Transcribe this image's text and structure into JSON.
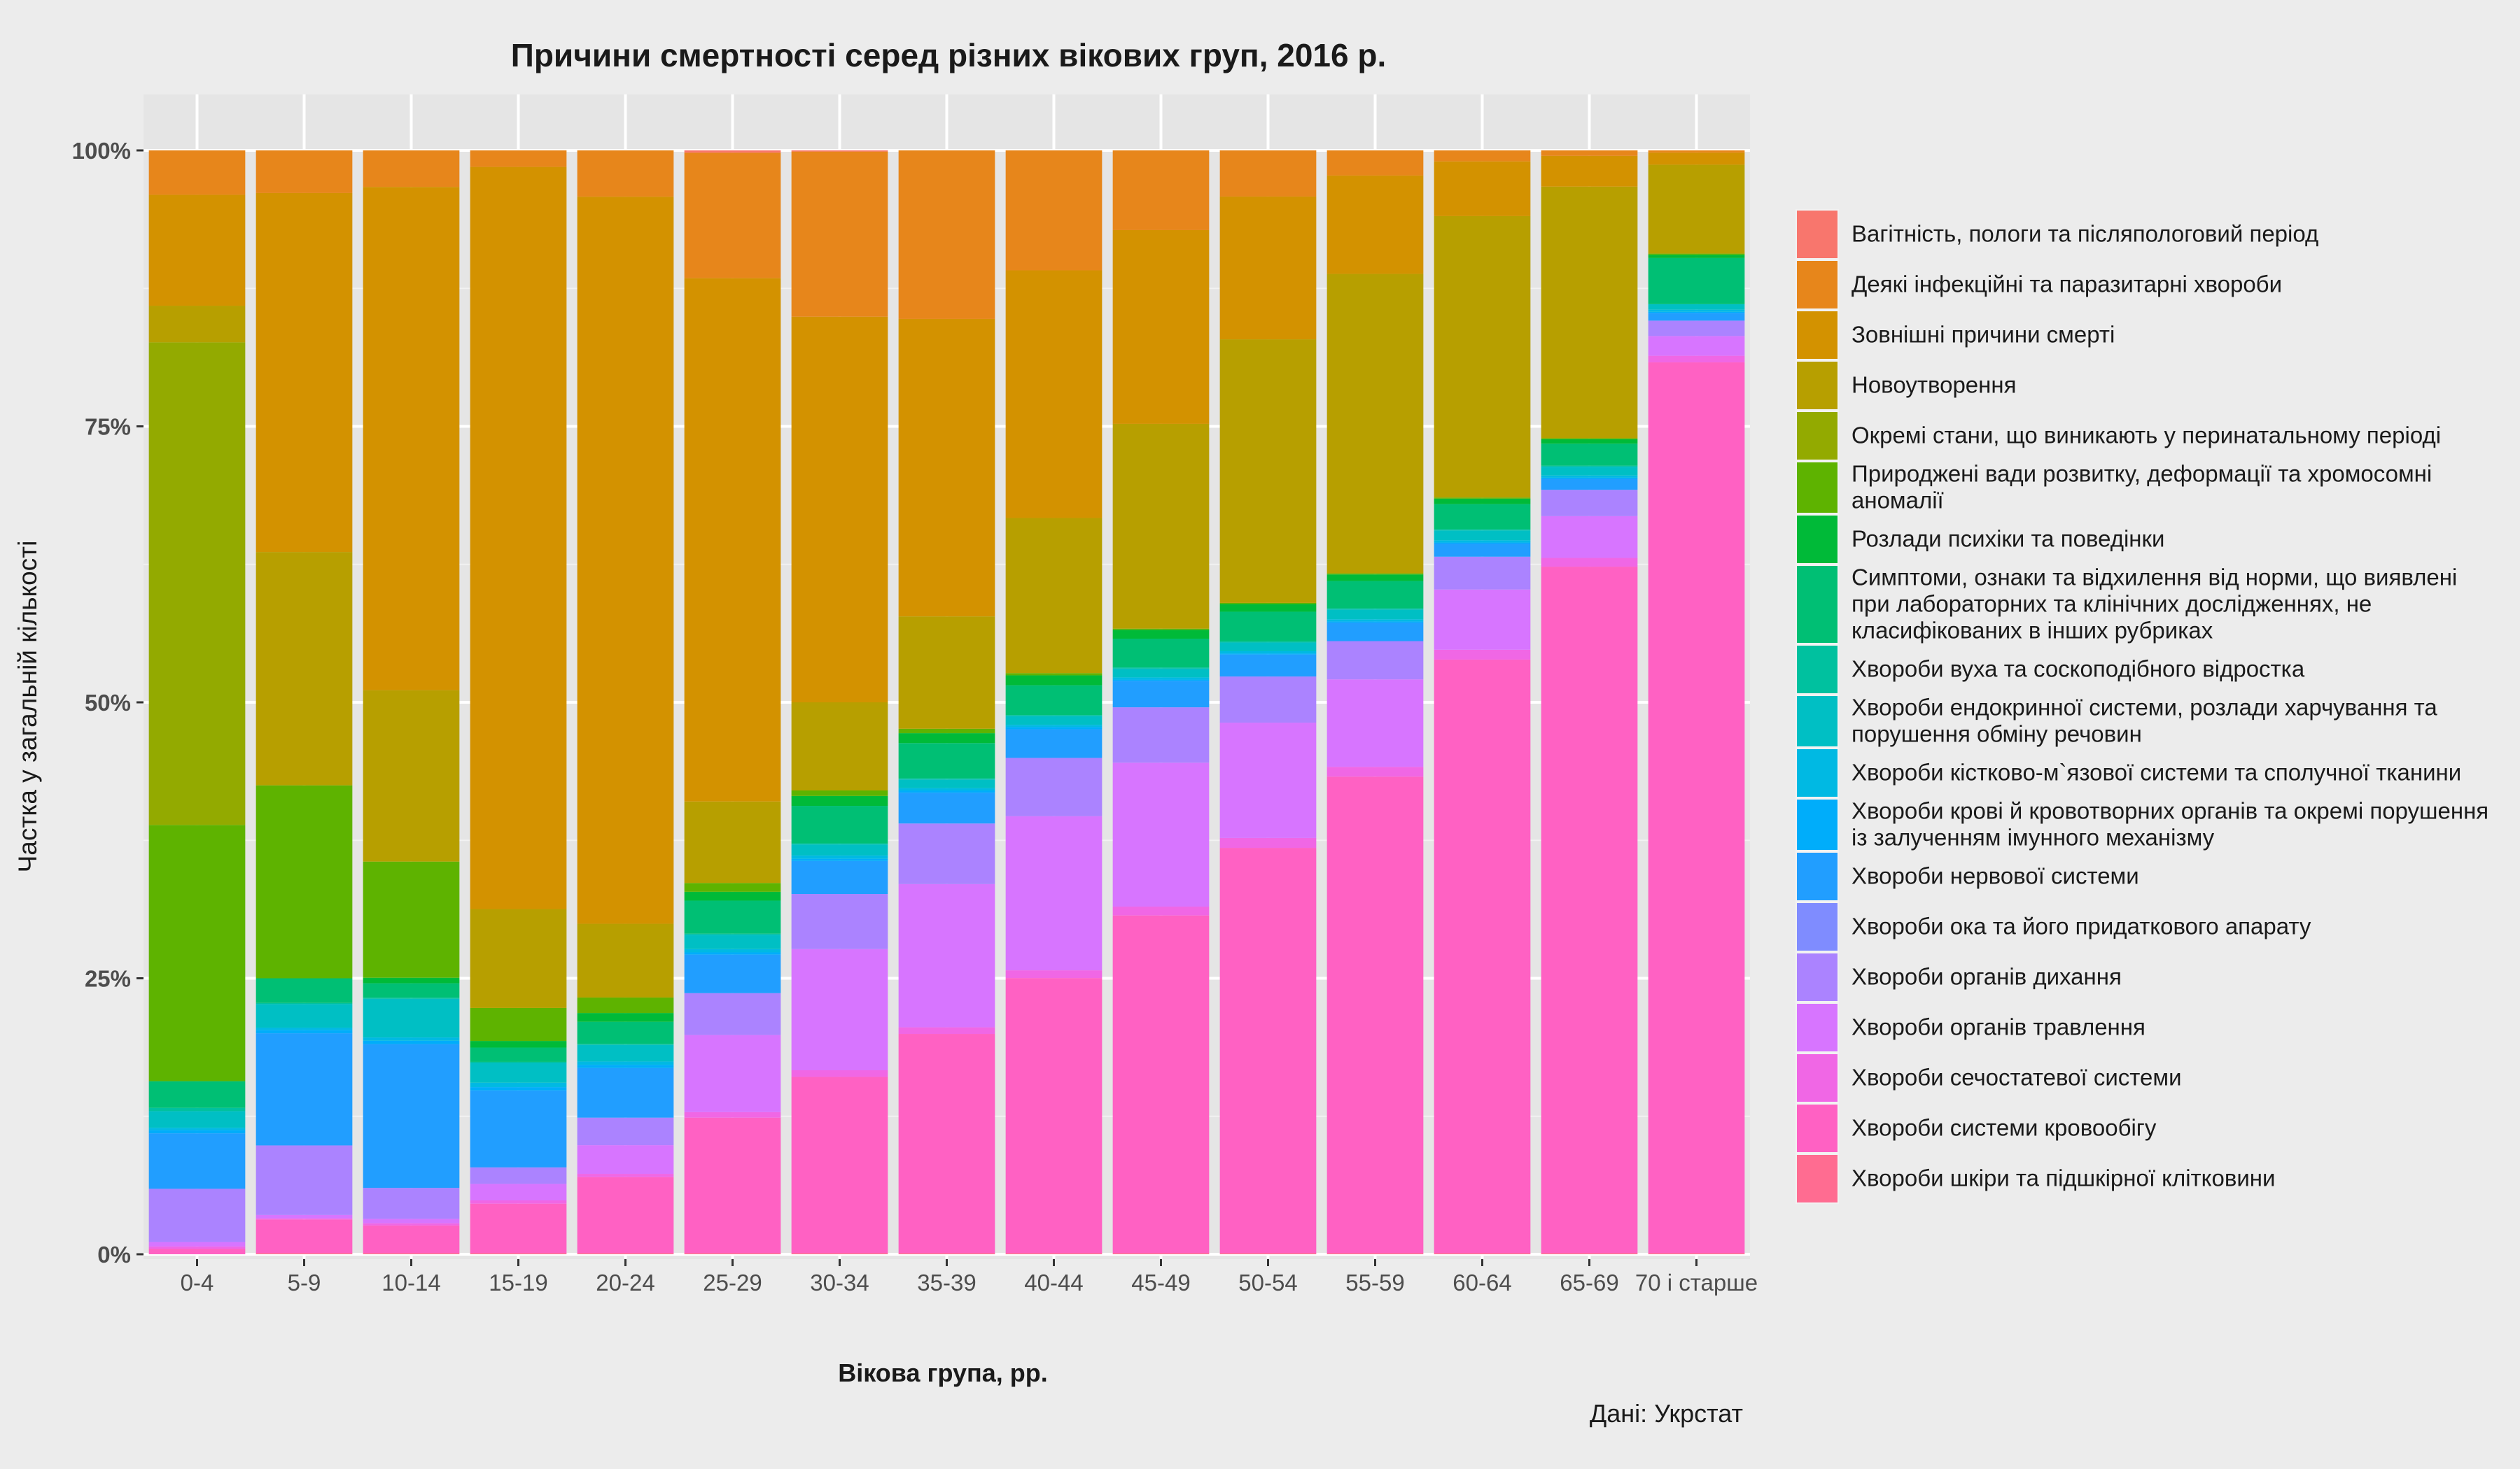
{
  "chart_data": {
    "type": "bar",
    "stacked": true,
    "normalized": true,
    "title": "Причини смертності серед різних вікових груп, 2016 р.",
    "xlabel": "Вікова група, рр.",
    "ylabel": "Частка у загальній кількості",
    "caption": "Дані: Укрстат",
    "ylim": [
      0,
      100
    ],
    "y_ticks": [
      "0%",
      "25%",
      "50%",
      "75%",
      "100%"
    ],
    "y_tick_values": [
      0,
      25,
      50,
      75,
      100
    ],
    "grid": true,
    "legend_position": "right",
    "categories": [
      "0-4",
      "5-9",
      "10-14",
      "15-19",
      "20-24",
      "25-29",
      "30-34",
      "35-39",
      "40-44",
      "45-49",
      "50-54",
      "55-59",
      "60-64",
      "65-69",
      "70 і старше"
    ],
    "series": [
      {
        "name": "Вагітність, пологи та післяпологовий період",
        "color": "#F8766D",
        "values": [
          0,
          0,
          0,
          0,
          0,
          0.2,
          0.1,
          0,
          0,
          0,
          0,
          0,
          0,
          0,
          0
        ]
      },
      {
        "name": "Деякі інфекційні та паразитарні хвороби",
        "color": "#E7861B",
        "values": [
          4.0,
          3.8,
          3.3,
          1.5,
          4.2,
          11.4,
          15.0,
          15.3,
          10.9,
          7.2,
          4.2,
          2.3,
          1.0,
          0.5,
          0.2
        ]
      },
      {
        "name": "Зовнішні причини смерті",
        "color": "#D39200",
        "values": [
          10.0,
          32.0,
          45.5,
          67.5,
          66.0,
          47.5,
          35.0,
          27.0,
          22.5,
          17.5,
          13.0,
          9.0,
          5.0,
          2.8,
          1.1
        ]
      },
      {
        "name": "Новоутворення",
        "color": "#B79F00",
        "values": [
          3.3,
          20.8,
          15.5,
          9.0,
          6.7,
          7.4,
          8.0,
          10.2,
          14.1,
          18.5,
          24.0,
          27.4,
          25.7,
          22.9,
          8.1
        ]
      },
      {
        "name": "Окремі стани, що виникають у перинатальному періоді",
        "color": "#93AA00",
        "values": [
          43.5,
          0,
          0,
          0,
          0,
          0,
          0,
          0,
          0,
          0,
          0,
          0,
          0,
          0,
          0
        ]
      },
      {
        "name": "Природжені вади розвитку, деформації та хромосомні аномалії",
        "color": "#5EB300",
        "values": [
          23.1,
          17.2,
          10.5,
          3.0,
          1.4,
          0.8,
          0.5,
          0.4,
          0.2,
          0.1,
          0.1,
          0.1,
          0.1,
          0.1,
          0.1
        ]
      },
      {
        "name": "Розлади психіки та поведінки",
        "color": "#00BA38",
        "values": [
          0,
          0,
          0.5,
          0.6,
          0.8,
          0.8,
          0.9,
          0.9,
          0.9,
          0.8,
          0.7,
          0.6,
          0.5,
          0.4,
          0.3
        ]
      },
      {
        "name": "Симптоми, ознаки та відхилення від норми, що виявлені при лабораторних та клінічних дослідженнях, не класифікованих в інших рубриках",
        "color": "#00BF74",
        "values": [
          2.4,
          2.2,
          1.3,
          1.3,
          2.0,
          3.0,
          3.4,
          3.2,
          2.7,
          2.6,
          2.7,
          2.5,
          2.3,
          2.0,
          4.2
        ]
      },
      {
        "name": "Хвороби вуха та соскоподібного відростка",
        "color": "#00C19F",
        "values": [
          0.3,
          0.1,
          0.1,
          0.1,
          0.1,
          0.1,
          0.1,
          0.1,
          0.1,
          0.1,
          0.1,
          0.1,
          0.1,
          0.1,
          0
        ]
      },
      {
        "name": "Хвороби ендокринної системи, розлади харчування та порушення обміну речовин",
        "color": "#00BFC4",
        "values": [
          1.5,
          2.1,
          3.5,
          1.8,
          1.5,
          1.3,
          1.0,
          0.8,
          0.8,
          0.8,
          0.8,
          0.9,
          0.9,
          0.8,
          0.5
        ]
      },
      {
        "name": "Хвороби кістково-м`язової системи та сполучної тканини",
        "color": "#00B9E3",
        "values": [
          0.2,
          0.2,
          0.3,
          0.4,
          0.3,
          0.3,
          0.3,
          0.2,
          0.2,
          0.2,
          0.2,
          0.2,
          0.2,
          0.2,
          0.2
        ]
      },
      {
        "name": "Хвороби крові й кровотворних органів та окремі порушення із залученням імунного механізму",
        "color": "#00ADFA",
        "values": [
          0.3,
          0.3,
          0.3,
          0.3,
          0.3,
          0.2,
          0.2,
          0.2,
          0.2,
          0.1,
          0.1,
          0.1,
          0.1,
          0.1,
          0.1
        ]
      },
      {
        "name": "Хвороби нервової системи",
        "color": "#219EFF",
        "values": [
          5.0,
          10.0,
          13.0,
          7.0,
          4.5,
          3.5,
          3.0,
          2.8,
          2.6,
          2.4,
          2.0,
          1.7,
          1.2,
          1.0,
          0.7
        ]
      },
      {
        "name": "Хвороби ока та його придаткового апарату",
        "color": "#7F8CFF",
        "values": [
          0,
          0,
          0,
          0,
          0,
          0,
          0,
          0,
          0,
          0,
          0,
          0,
          0,
          0,
          0
        ]
      },
      {
        "name": "Хвороби органів дихання",
        "color": "#AB83FF",
        "values": [
          4.8,
          6.2,
          2.8,
          1.5,
          2.5,
          3.8,
          5.0,
          5.5,
          5.3,
          5.0,
          4.2,
          3.5,
          3.0,
          2.4,
          1.4
        ]
      },
      {
        "name": "Хвороби органів травлення",
        "color": "#D775FF",
        "values": [
          0.4,
          0.3,
          0.4,
          1.5,
          2.6,
          7.0,
          11.0,
          13.0,
          14.0,
          13.0,
          10.5,
          8.0,
          5.5,
          3.8,
          1.8
        ]
      },
      {
        "name": "Хвороби сечостатевої системи",
        "color": "#F067E5",
        "values": [
          0.2,
          0.1,
          0.2,
          0.3,
          0.3,
          0.5,
          0.6,
          0.6,
          0.7,
          0.8,
          0.9,
          0.9,
          0.9,
          0.8,
          0.6
        ]
      },
      {
        "name": "Хвороби системи кровообігу",
        "color": "#FF61C3",
        "values": [
          0.5,
          3.0,
          2.5,
          4.5,
          6.9,
          12.3,
          16.0,
          19.9,
          25.0,
          30.5,
          36.9,
          43.6,
          54.2,
          62.5,
          81.1
        ]
      },
      {
        "name": "Хвороби шкіри та підшкірної клітковини",
        "color": "#FF6C91",
        "values": [
          0,
          0.1,
          0.1,
          0.1,
          0.1,
          0.1,
          0.1,
          0.1,
          0.1,
          0.1,
          0.1,
          0.1,
          0.1,
          0.1,
          0.1
        ]
      }
    ]
  }
}
